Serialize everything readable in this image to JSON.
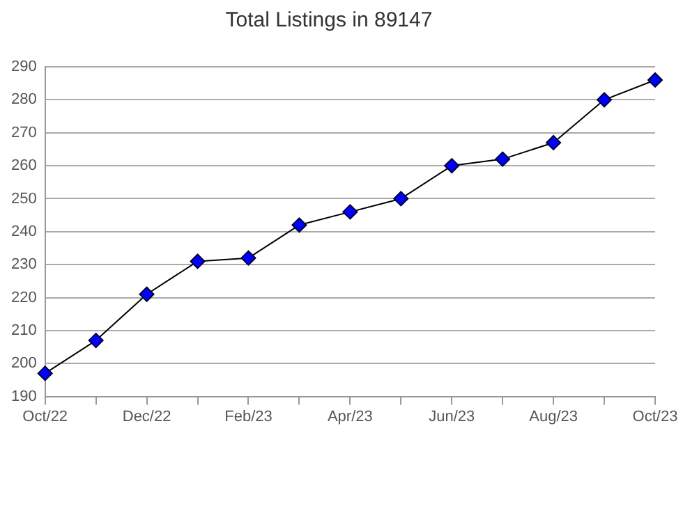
{
  "chart_data": {
    "type": "line",
    "title": "Total Listings in 89147",
    "categories": [
      "Oct/22",
      null,
      "Dec/22",
      null,
      "Feb/23",
      null,
      "Apr/23",
      null,
      "Jun/23",
      null,
      "Aug/23",
      null,
      "Oct/23"
    ],
    "series": [
      {
        "color": "#0000ff",
        "values": [
          197,
          207,
          221,
          231,
          232,
          242,
          246,
          250,
          260,
          262,
          267,
          280,
          286
        ]
      }
    ],
    "ylim": [
      190,
      290
    ],
    "yticks": [
      190,
      200,
      210,
      220,
      230,
      240,
      250,
      260,
      270,
      280,
      290
    ],
    "grid": "y",
    "legend": false,
    "marker": "diamond",
    "line_style": "solid"
  }
}
